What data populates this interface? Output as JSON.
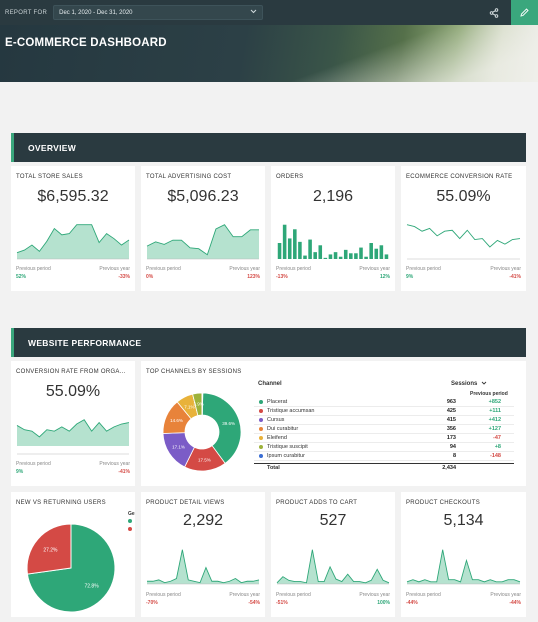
{
  "topbar": {
    "report_for_label": "REPORT FOR",
    "date_range": "Dec 1, 2020 - Dec 31, 2020",
    "chevron_icon": "chevron-down-icon",
    "share_icon": "share-icon",
    "edit_icon": "pencil-icon",
    "edit_bg": "#3aa77d"
  },
  "hero": {
    "title": "E-COMMERCE DASHBOARD"
  },
  "sections": {
    "overview": "OVERVIEW",
    "website_performance": "WEBSITE PERFORMANCE"
  },
  "footer_labels": {
    "previous_period": "Previous period",
    "previous_year": "Previous year"
  },
  "overview": {
    "total_store_sales": {
      "title": "TOTAL STORE SALES",
      "value": "$6,595.32",
      "prev_period": "52%",
      "prev_year": "-33%",
      "trend": [
        5,
        7,
        11,
        6,
        14,
        24,
        19,
        20,
        27,
        27,
        27,
        13,
        20,
        16,
        11,
        15
      ]
    },
    "total_advertising_cost": {
      "title": "TOTAL ADVERTISING COST",
      "value": "$5,096.23",
      "prev_period": "0%",
      "prev_year": "123%",
      "trend": [
        15,
        20,
        17,
        22,
        22,
        13,
        12,
        5,
        35,
        40,
        26,
        26,
        34,
        34
      ]
    },
    "orders": {
      "title": "ORDERS",
      "value": "2,196",
      "prev_period": "-13%",
      "prev_year": "12%",
      "bars": [
        14,
        30,
        18,
        26,
        15,
        3,
        17,
        6,
        12,
        1,
        4,
        6,
        2,
        8,
        5,
        5,
        10,
        2,
        14,
        9,
        12,
        4
      ]
    },
    "ecommerce_conversion_rate": {
      "title": "ECOMMERCE CONVERSION RATE",
      "value": "55.09%",
      "prev_period": "9%",
      "prev_year": "-41%",
      "trend": [
        37,
        35,
        30,
        33,
        25,
        30,
        31,
        22,
        31,
        21,
        22,
        13,
        20,
        16,
        21,
        22
      ]
    }
  },
  "website_performance": {
    "conversion_rate_from_organic": {
      "title": "CONVERSION RATE FROM ORGA...",
      "value": "55.09%",
      "prev_period": "9%",
      "prev_year": "-41%",
      "trend": [
        20,
        17,
        16,
        12,
        17,
        16,
        19,
        16,
        21,
        24,
        16,
        22,
        16,
        19,
        21,
        22
      ]
    },
    "top_channels": {
      "title": "TOP CHANNELS BY SESSIONS",
      "col_channel": "Channel",
      "col_sessions": "Sessions",
      "col_prev": "Previous period",
      "total_label": "Total",
      "total_sessions": "2,434",
      "donut_labels": [
        "39.6%",
        "17.5%",
        "17.1%",
        "14.6%",
        "7.1%",
        "3.9%"
      ],
      "rows": [
        {
          "name": "Placerat",
          "sessions": "963",
          "change": "+852",
          "color": "#2ea778"
        },
        {
          "name": "Tristique accumsan",
          "sessions": "425",
          "change": "+111",
          "color": "#d44a45"
        },
        {
          "name": "Cursus",
          "sessions": "415",
          "change": "+412",
          "color": "#7b5cc7"
        },
        {
          "name": "Dui curabitur",
          "sessions": "356",
          "change": "+127",
          "color": "#e8833a"
        },
        {
          "name": "Eleifend",
          "sessions": "173",
          "change": "-47",
          "color": "#e8b23a"
        },
        {
          "name": "Tristique suscipit",
          "sessions": "94",
          "change": "+8",
          "color": "#9db23a"
        },
        {
          "name": "Ipsum curabitur",
          "sessions": "8",
          "change": "-148",
          "color": "#3a6ed4"
        }
      ]
    },
    "new_vs_returning": {
      "title": "NEW VS RETURNING USERS",
      "slice_new": "72.8%",
      "slice_returning": "27.2%",
      "legend_initial": "Ge"
    },
    "product_detail_views": {
      "title": "PRODUCT DETAIL VIEWS",
      "value": "2,292",
      "prev_period": "-70%",
      "prev_year": "-54%",
      "trend": [
        2,
        2,
        3,
        1,
        2,
        4,
        25,
        3,
        2,
        1,
        12,
        2,
        2,
        1,
        2,
        4,
        1,
        2,
        2,
        3
      ]
    },
    "product_adds_to_cart": {
      "title": "PRODUCT ADDS TO CART",
      "value": "527",
      "prev_period": "-51%",
      "prev_year": "100%",
      "trend": [
        1,
        6,
        3,
        2,
        2,
        1,
        28,
        2,
        2,
        14,
        4,
        2,
        8,
        2,
        2,
        1,
        3,
        12,
        3,
        1
      ]
    },
    "product_checkouts": {
      "title": "PRODUCT CHECKOUTS",
      "value": "5,134",
      "prev_period": "-44%",
      "prev_year": "-44%",
      "trend": [
        1,
        2,
        1,
        2,
        1,
        1,
        16,
        2,
        2,
        1,
        11,
        2,
        2,
        1,
        2,
        1,
        1,
        2,
        2,
        1
      ]
    }
  }
}
